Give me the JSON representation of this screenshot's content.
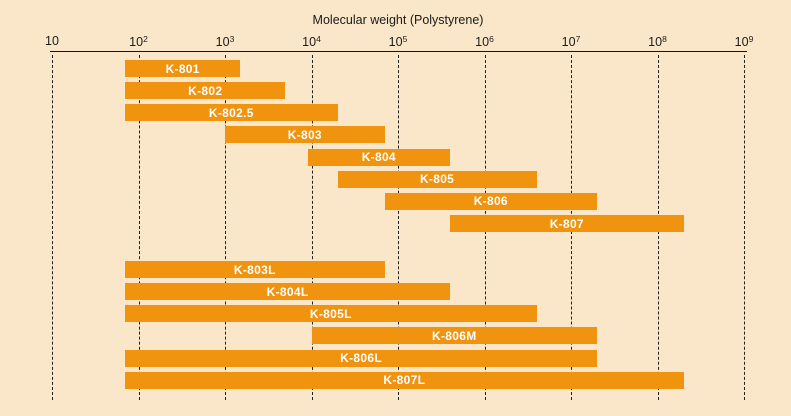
{
  "chart_data": {
    "type": "bar",
    "orientation": "horizontal-range",
    "title": "Molecular weight (Polystyrene)",
    "colors": {
      "background": "#FAE6C8",
      "bar": "#F0930F",
      "bar_label_text": "#FFFFFF",
      "axis_text": "#1B1B1B"
    },
    "x_axis": {
      "scale": "log",
      "min": 10,
      "max": 1000000000,
      "grid": "dashed-vertical",
      "ticks": [
        {
          "value": 10,
          "label": "10",
          "exp": ""
        },
        {
          "value": 100,
          "label": "10",
          "exp": "2"
        },
        {
          "value": 1000,
          "label": "10",
          "exp": "3"
        },
        {
          "value": 10000,
          "label": "10",
          "exp": "4"
        },
        {
          "value": 100000,
          "label": "10",
          "exp": "5"
        },
        {
          "value": 1000000,
          "label": "10",
          "exp": "6"
        },
        {
          "value": 10000000,
          "label": "10",
          "exp": "7"
        },
        {
          "value": 100000000,
          "label": "10",
          "exp": "8"
        },
        {
          "value": 1000000000,
          "label": "10",
          "exp": "9"
        }
      ]
    },
    "series": [
      {
        "label": "K-801",
        "group": "upper",
        "range": [
          70,
          1500
        ]
      },
      {
        "label": "K-802",
        "group": "upper",
        "range": [
          70,
          5000
        ]
      },
      {
        "label": "K-802.5",
        "group": "upper",
        "range": [
          70,
          20000
        ]
      },
      {
        "label": "K-803",
        "group": "upper",
        "range": [
          1000,
          70000
        ]
      },
      {
        "label": "K-804",
        "group": "upper",
        "range": [
          9000,
          400000
        ]
      },
      {
        "label": "K-805",
        "group": "upper",
        "range": [
          20000,
          4000000
        ]
      },
      {
        "label": "K-806",
        "group": "upper",
        "range": [
          70000,
          20000000
        ]
      },
      {
        "label": "K-807",
        "group": "upper",
        "range": [
          400000,
          200000000
        ]
      },
      {
        "label": "K-803L",
        "group": "lower",
        "range": [
          70,
          70000
        ]
      },
      {
        "label": "K-804L",
        "group": "lower",
        "range": [
          70,
          400000
        ]
      },
      {
        "label": "K-805L",
        "group": "lower",
        "range": [
          70,
          4000000
        ]
      },
      {
        "label": "K-806M",
        "group": "lower",
        "range": [
          10000,
          20000000
        ]
      },
      {
        "label": "K-806L",
        "group": "lower",
        "range": [
          70,
          20000000
        ]
      },
      {
        "label": "K-807L",
        "group": "lower",
        "range": [
          70,
          200000000
        ]
      }
    ]
  }
}
